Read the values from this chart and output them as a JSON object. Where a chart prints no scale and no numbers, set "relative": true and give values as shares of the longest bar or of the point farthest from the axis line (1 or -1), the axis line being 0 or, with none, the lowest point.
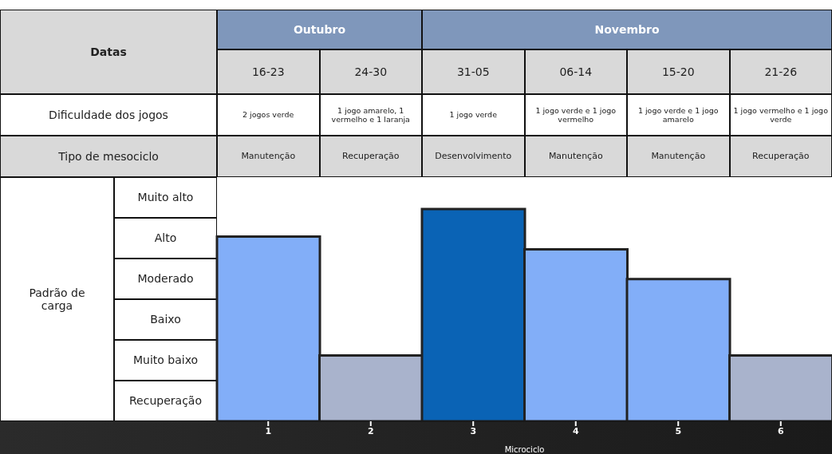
{
  "chart_data": {
    "type": "bar",
    "categories": [
      "1",
      "2",
      "3",
      "4",
      "5",
      "6"
    ],
    "values": [
      0.87,
      0.31,
      1,
      0.81,
      0.67,
      0.31
    ],
    "relative": true,
    "colors": [
      "#82aef8",
      "#a9b3cc",
      "#0a63b5",
      "#82aef8",
      "#82aef8",
      "#a9b3cc"
    ],
    "xlabel": "Microciclo",
    "annotations": [
      "Datas",
      "Outubro",
      "Novembro",
      "16-23",
      "24-30",
      "31-05",
      "06-14",
      "15-20",
      "21-26",
      "Dificuldade dos jogos",
      "2 jogos verde",
      "1 jogo amarelo, 1 vermelho e 1 laranja",
      "1 jogo verde",
      "1 jogo verde e 1 jogo vermelho",
      "1 jogo verde e 1 jogo amarelo",
      "1 jogo vermelho e 1 jogo verde",
      "Tipo de mesociclo",
      "Manutenção",
      "Recuperação",
      "Desenvolvimento",
      "Manutenção",
      "Manutenção",
      "Recuperação",
      "Muito alto",
      "Alto",
      "Moderado",
      "Baixo",
      "Muito baixo",
      "Recuperação",
      "Padrão de carga"
    ]
  }
}
